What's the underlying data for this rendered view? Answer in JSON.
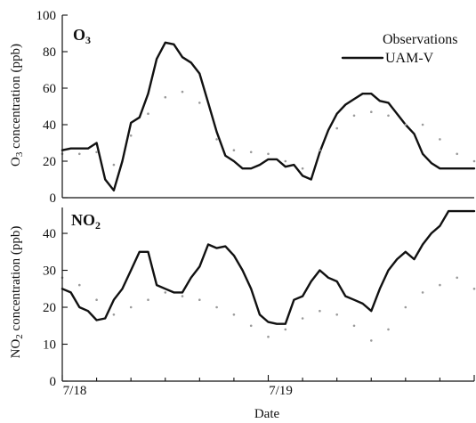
{
  "chart_data": [
    {
      "type": "line",
      "panel_label": "O",
      "panel_label_sub": "3",
      "ylabel": "O",
      "ylabel_sub": "3",
      "ylabel_rest": " concentration (ppb)",
      "ylim": [
        0,
        100
      ],
      "yticks": [
        "0",
        "20",
        "40",
        "60",
        "80",
        "100"
      ],
      "xlim": [
        0,
        48
      ],
      "legend": {
        "placement": "top-right",
        "observations_label": "Observations",
        "model_label": "UAM-V"
      },
      "series": [
        {
          "name": "UAM-V",
          "style": "solid",
          "x": [
            0,
            1,
            2,
            3,
            4,
            5,
            6,
            7,
            8,
            9,
            10,
            11,
            12,
            13,
            14,
            15,
            16,
            17,
            18,
            19,
            20,
            21,
            22,
            23,
            24,
            25,
            26,
            27,
            28,
            29,
            30,
            31,
            32,
            33,
            34,
            35,
            36,
            37,
            38,
            39,
            40,
            41,
            42,
            43,
            44,
            45,
            46,
            47,
            48
          ],
          "y": [
            26,
            27,
            27,
            27,
            30,
            10,
            4,
            20,
            41,
            44,
            57,
            76,
            85,
            84,
            77,
            74,
            68,
            52,
            36,
            23,
            20,
            16,
            16,
            18,
            21,
            21,
            17,
            18,
            12,
            10,
            25,
            37,
            46,
            51,
            54,
            57,
            57,
            53,
            52,
            46,
            40,
            35,
            24,
            19,
            16,
            16,
            16,
            16,
            16
          ]
        },
        {
          "name": "Observations",
          "style": "dotted",
          "x": [
            0,
            2,
            4,
            6,
            8,
            10,
            12,
            14,
            16,
            18,
            20,
            22,
            24,
            26,
            28,
            30,
            32,
            34,
            36,
            38,
            40,
            42,
            44,
            46,
            48
          ],
          "y": [
            24,
            24,
            25,
            18,
            34,
            46,
            55,
            58,
            52,
            32,
            26,
            25,
            24,
            20,
            16,
            26,
            38,
            45,
            47,
            45,
            40,
            40,
            32,
            24,
            20
          ]
        }
      ]
    },
    {
      "type": "line",
      "panel_label": "NO",
      "panel_label_sub": "2",
      "ylabel": "NO",
      "ylabel_sub": "2",
      "ylabel_rest": " concentration (ppb)",
      "ylim": [
        0,
        47
      ],
      "yticks": [
        "0",
        "10",
        "20",
        "30",
        "40"
      ],
      "xlabel": "Date",
      "xlim": [
        0,
        48
      ],
      "xticks": [
        {
          "x": 0,
          "label": "7/18"
        },
        {
          "x": 24,
          "label": "7/19"
        }
      ],
      "series": [
        {
          "name": "UAM-V",
          "style": "solid",
          "x": [
            0,
            1,
            2,
            3,
            4,
            5,
            6,
            7,
            8,
            9,
            10,
            11,
            12,
            13,
            14,
            15,
            16,
            17,
            18,
            19,
            20,
            21,
            22,
            23,
            24,
            25,
            26,
            27,
            28,
            29,
            30,
            31,
            32,
            33,
            34,
            35,
            36,
            37,
            38,
            39,
            40,
            41,
            42,
            43,
            44,
            45,
            46,
            47,
            48
          ],
          "y": [
            25,
            24,
            20,
            19,
            16.5,
            17,
            22,
            25,
            30,
            35,
            35,
            26,
            25,
            24,
            24,
            28,
            31,
            37,
            36,
            36.5,
            34,
            30,
            25,
            18,
            16,
            15.5,
            15.5,
            22,
            23,
            27,
            30,
            28,
            27,
            23,
            22,
            21,
            19,
            25,
            30,
            33,
            35,
            33,
            37,
            40,
            42,
            46,
            46,
            46,
            46
          ]
        },
        {
          "name": "Observations",
          "style": "dotted",
          "x": [
            0,
            2,
            4,
            6,
            8,
            10,
            12,
            14,
            16,
            18,
            20,
            22,
            24,
            26,
            28,
            30,
            32,
            34,
            36,
            38,
            40,
            42,
            44,
            46,
            48
          ],
          "y": [
            28,
            26,
            22,
            18,
            20,
            22,
            24,
            23,
            22,
            20,
            18,
            15,
            12,
            14,
            17,
            19,
            18,
            15,
            11,
            14,
            20,
            24,
            26,
            28,
            25
          ]
        }
      ]
    }
  ]
}
